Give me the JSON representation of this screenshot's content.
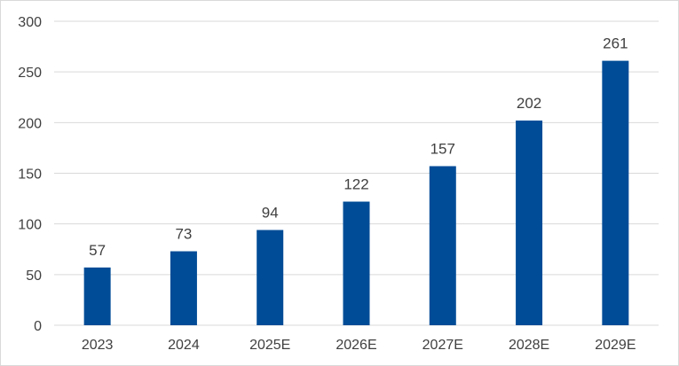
{
  "chart_data": {
    "type": "bar",
    "title": "",
    "xlabel": "",
    "ylabel": "",
    "categories": [
      "2023",
      "2024",
      "2025E",
      "2026E",
      "2027E",
      "2028E",
      "2029E"
    ],
    "values": [
      57,
      73,
      94,
      122,
      157,
      202,
      261
    ],
    "data_labels": [
      "57",
      "73",
      "94",
      "122",
      "157",
      "202",
      "261"
    ],
    "ylim": [
      0,
      300
    ],
    "yticks": [
      0,
      50,
      100,
      150,
      200,
      250,
      300
    ],
    "ytick_labels": [
      "0",
      "50",
      "100",
      "150",
      "200",
      "250",
      "300"
    ],
    "grid": true,
    "legend": "none",
    "colors": {
      "bar": "#004C97",
      "grid": "#D9D9D9",
      "text": "#404040"
    }
  }
}
